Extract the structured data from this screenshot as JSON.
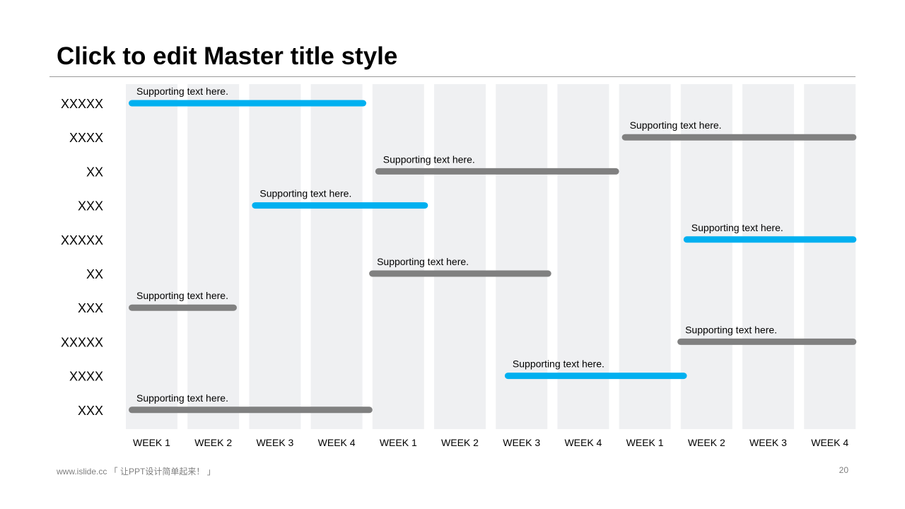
{
  "slide": {
    "title": "Click to edit Master title style",
    "footer": "www.islide.cc 「 让PPT设计简单起来！ 」",
    "page_number": "20"
  },
  "colors": {
    "column_bg": "#eff0f2",
    "accent_blue": "#00b0f0",
    "neutral_gray": "#808080",
    "text": "#000000"
  },
  "chart_data": {
    "type": "gantt",
    "columns": [
      "WEEK 1",
      "WEEK 2",
      "WEEK 3",
      "WEEK 4",
      "WEEK 1",
      "WEEK 2",
      "WEEK 3",
      "WEEK 4",
      "WEEK 1",
      "WEEK 2",
      "WEEK 3",
      "WEEK 4"
    ],
    "rows": [
      {
        "label": "XXXXX",
        "start": 0.0,
        "end": 3.9,
        "color": "blue",
        "text": "Supporting text here."
      },
      {
        "label": "XXXX",
        "start": 8.0,
        "end": 11.85,
        "color": "gray",
        "text": "Supporting text here."
      },
      {
        "label": "XX",
        "start": 4.0,
        "end": 8.0,
        "color": "gray",
        "text": "Supporting text here."
      },
      {
        "label": "XXX",
        "start": 2.0,
        "end": 4.9,
        "color": "blue",
        "text": "Supporting text here."
      },
      {
        "label": "XXXXX",
        "start": 9.0,
        "end": 11.85,
        "color": "blue",
        "text": "Supporting text here."
      },
      {
        "label": "XX",
        "start": 3.9,
        "end": 6.9,
        "color": "gray",
        "text": "Supporting text here."
      },
      {
        "label": "XXX",
        "start": 0.0,
        "end": 1.8,
        "color": "gray",
        "text": "Supporting text here."
      },
      {
        "label": "XXXXX",
        "start": 8.9,
        "end": 11.85,
        "color": "gray",
        "text": "Supporting text here."
      },
      {
        "label": "XXXX",
        "start": 6.1,
        "end": 9.1,
        "color": "blue",
        "text": "Supporting text here."
      },
      {
        "label": "XXX",
        "start": 0.0,
        "end": 4.0,
        "color": "gray",
        "text": "Supporting text here."
      }
    ]
  }
}
